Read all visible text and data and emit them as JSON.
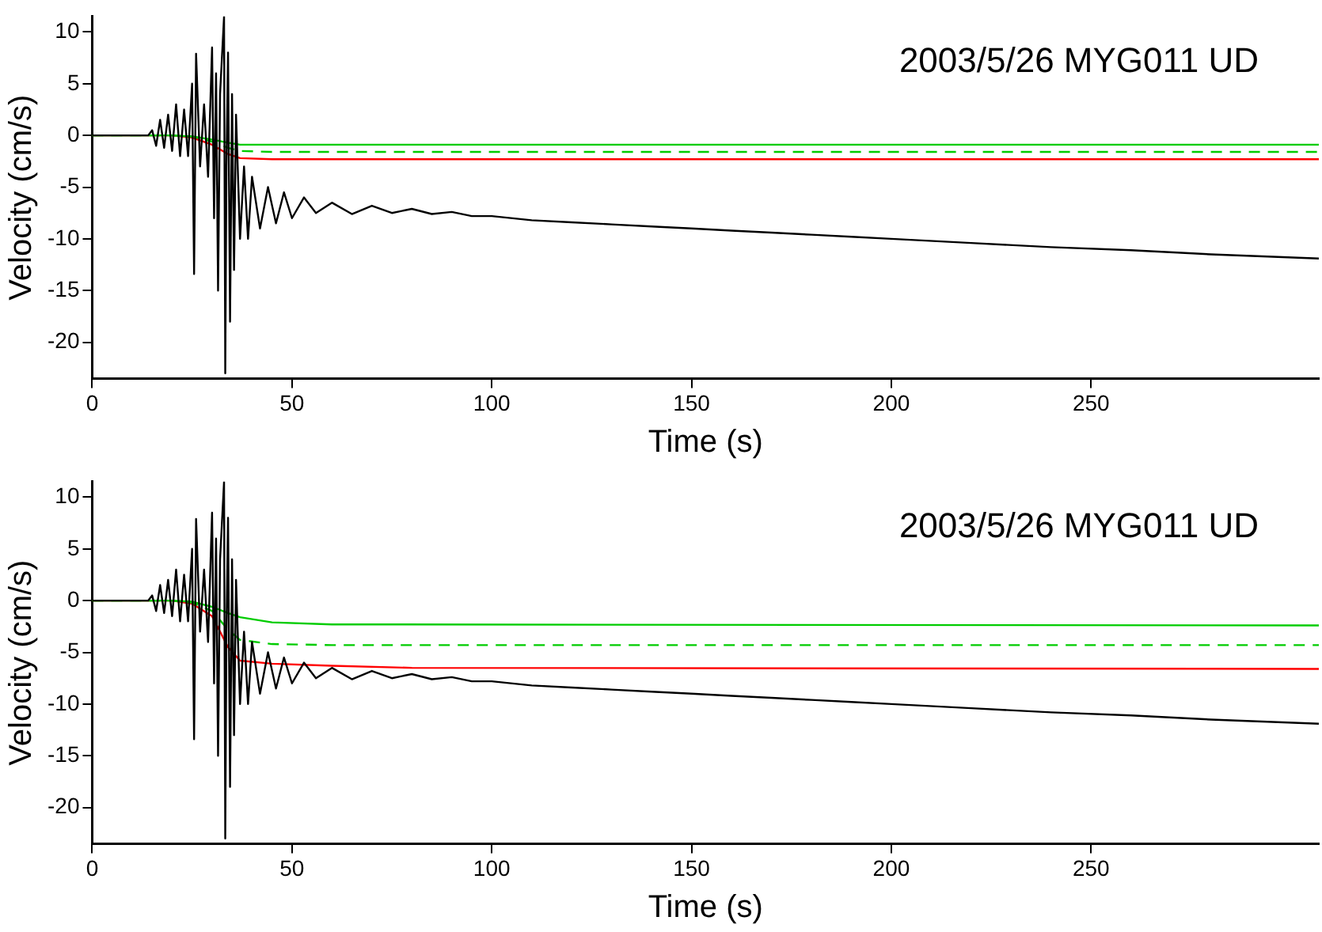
{
  "chart_data": [
    {
      "type": "line",
      "xlabel": "Time (s)",
      "ylabel": "Velocity (cm/s)",
      "annotations": [
        "2003/5/26 MYG011 UD"
      ],
      "xlim": [
        0,
        307
      ],
      "xticks": [
        0,
        50,
        100,
        150,
        200,
        250
      ],
      "ylim": [
        -23.5,
        11.5
      ],
      "yticks": [
        10,
        5,
        0,
        -5,
        -10,
        -15,
        -20
      ],
      "grid": false,
      "legend": false,
      "marker": "none",
      "line_style": "solid",
      "series": [
        {
          "color": "#000000",
          "x": [
            0,
            14,
            15,
            16,
            17,
            18,
            19,
            20,
            21,
            22,
            23,
            24,
            25,
            25.5,
            26,
            27,
            28,
            29,
            30,
            30.5,
            31,
            31.5,
            32,
            33,
            33.3,
            33.6,
            34,
            34.5,
            35,
            35.5,
            36,
            37,
            38,
            39,
            40,
            42,
            44,
            46,
            48,
            50,
            53,
            56,
            60,
            65,
            70,
            75,
            80,
            85,
            90,
            95,
            100,
            110,
            120,
            130,
            140,
            150,
            160,
            170,
            180,
            190,
            200,
            220,
            240,
            260,
            280,
            307
          ],
          "values": [
            0,
            0,
            0.5,
            -1,
            1.5,
            -1.2,
            2,
            -1.5,
            3,
            -2,
            2.5,
            -2,
            5,
            -13.4,
            7.9,
            -3,
            3,
            -4,
            8.5,
            -8,
            6,
            -15,
            4,
            11.5,
            -23,
            -3,
            8,
            -18,
            4,
            -13,
            2,
            -10,
            -3,
            -10,
            -4,
            -9,
            -5,
            -8.5,
            -5.5,
            -8,
            -6,
            -7.5,
            -6.5,
            -7.6,
            -6.8,
            -7.5,
            -7.1,
            -7.6,
            -7.4,
            -7.8,
            -7.8,
            -8.2,
            -8.4,
            -8.6,
            -8.8,
            -9,
            -9.2,
            -9.4,
            -9.6,
            -9.8,
            -10,
            -10.4,
            -10.8,
            -11.1,
            -11.5,
            -11.9
          ]
        },
        {
          "color": "#00cc00",
          "x": [
            0,
            20,
            25,
            30,
            34,
            37,
            45,
            60,
            307
          ],
          "values": [
            0,
            0,
            -0.1,
            -0.4,
            -0.7,
            -0.9,
            -0.9,
            -0.9,
            -0.9
          ]
        },
        {
          "color": "#00cc00",
          "line_style": "dashed",
          "x": [
            0,
            20,
            25,
            30,
            34,
            37,
            45,
            60,
            307
          ],
          "values": [
            0,
            0,
            -0.1,
            -0.6,
            -1.2,
            -1.5,
            -1.6,
            -1.6,
            -1.6
          ]
        },
        {
          "color": "#ff0000",
          "x": [
            0,
            20,
            25,
            30,
            34,
            37,
            45,
            60,
            307
          ],
          "values": [
            0,
            0,
            -0.2,
            -0.9,
            -1.8,
            -2.2,
            -2.3,
            -2.3,
            -2.3
          ]
        }
      ]
    },
    {
      "type": "line",
      "xlabel": "Time (s)",
      "ylabel": "Velocity (cm/s)",
      "annotations": [
        "2003/5/26 MYG011 UD"
      ],
      "xlim": [
        0,
        307
      ],
      "xticks": [
        0,
        50,
        100,
        150,
        200,
        250
      ],
      "ylim": [
        -23.5,
        11.5
      ],
      "yticks": [
        10,
        5,
        0,
        -5,
        -10,
        -15,
        -20
      ],
      "grid": false,
      "legend": false,
      "marker": "none",
      "line_style": "solid",
      "series": [
        {
          "color": "#000000",
          "x": [
            0,
            14,
            15,
            16,
            17,
            18,
            19,
            20,
            21,
            22,
            23,
            24,
            25,
            25.5,
            26,
            27,
            28,
            29,
            30,
            30.5,
            31,
            31.5,
            32,
            33,
            33.3,
            33.6,
            34,
            34.5,
            35,
            35.5,
            36,
            37,
            38,
            39,
            40,
            42,
            44,
            46,
            48,
            50,
            53,
            56,
            60,
            65,
            70,
            75,
            80,
            85,
            90,
            95,
            100,
            110,
            120,
            130,
            140,
            150,
            160,
            170,
            180,
            190,
            200,
            220,
            240,
            260,
            280,
            307
          ],
          "values": [
            0,
            0,
            0.5,
            -1,
            1.5,
            -1.2,
            2,
            -1.5,
            3,
            -2,
            2.5,
            -2,
            5,
            -13.4,
            7.9,
            -3,
            3,
            -4,
            8.5,
            -8,
            6,
            -15,
            4,
            11.5,
            -23,
            -3,
            8,
            -18,
            4,
            -13,
            2,
            -10,
            -3,
            -10,
            -4,
            -9,
            -5,
            -8.5,
            -5.5,
            -8,
            -6,
            -7.5,
            -6.5,
            -7.6,
            -6.8,
            -7.5,
            -7.1,
            -7.6,
            -7.4,
            -7.8,
            -7.8,
            -8.2,
            -8.4,
            -8.6,
            -8.8,
            -9,
            -9.2,
            -9.4,
            -9.6,
            -9.8,
            -10,
            -10.4,
            -10.8,
            -11.1,
            -11.5,
            -11.9
          ]
        },
        {
          "color": "#00cc00",
          "x": [
            0,
            20,
            25,
            30,
            34,
            37,
            45,
            60,
            307
          ],
          "values": [
            0,
            0,
            -0.1,
            -0.6,
            -1.2,
            -1.6,
            -2.1,
            -2.3,
            -2.4
          ]
        },
        {
          "color": "#00cc00",
          "line_style": "dashed",
          "x": [
            0,
            20,
            25,
            30,
            34,
            37,
            45,
            60,
            307
          ],
          "values": [
            0,
            0,
            -0.2,
            -1,
            -2.8,
            -3.8,
            -4.2,
            -4.3,
            -4.3
          ]
        },
        {
          "color": "#ff0000",
          "x": [
            0,
            20,
            25,
            30,
            34,
            37,
            45,
            60,
            80,
            307
          ],
          "values": [
            0,
            0,
            -0.3,
            -1.5,
            -4.5,
            -5.8,
            -6.1,
            -6.3,
            -6.5,
            -6.6
          ]
        }
      ]
    }
  ]
}
